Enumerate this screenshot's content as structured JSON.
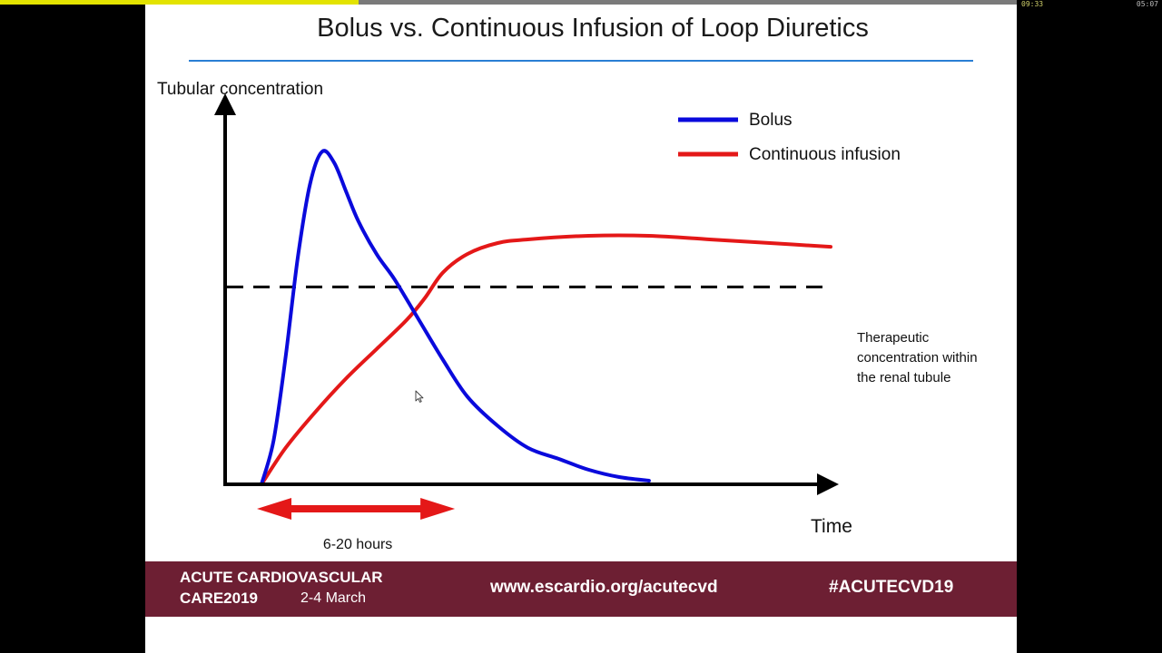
{
  "player": {
    "time_elapsed": "09:33",
    "time_total": "05:07",
    "progress_fraction": 0.353,
    "accent": "#e3e300"
  },
  "slide": {
    "title": "Bolus vs. Continuous Infusion of Loop Diuretics",
    "footer": {
      "event_line1": "ACUTE CARDIOVASCULAR",
      "event_line2": "CARE2019",
      "dates": "2-4 March",
      "url": "www.escardio.org/acutecvd",
      "hashtag": "#ACUTECVD19",
      "band_color": "#6d1f33"
    }
  },
  "chart_data": {
    "type": "line",
    "title": "",
    "ylabel": "Tubular concentration",
    "xlabel": "Time",
    "axis_ticks": false,
    "xlim": [
      0,
      100
    ],
    "ylim": [
      0,
      100
    ],
    "legend_position": "top-right",
    "series": [
      {
        "name": "Bolus",
        "color": "#0a0adc",
        "x": [
          6,
          8,
          10,
          12,
          14,
          16,
          18,
          20,
          22,
          25,
          28,
          32,
          36,
          40,
          45,
          50,
          55,
          60,
          65,
          70
        ],
        "y": [
          0,
          12,
          35,
          62,
          82,
          91,
          88,
          80,
          72,
          63,
          56,
          45,
          34,
          24,
          16,
          10,
          7,
          4,
          2,
          1
        ]
      },
      {
        "name": "Continuous infusion",
        "color": "#e41818",
        "x": [
          6,
          10,
          15,
          20,
          25,
          30,
          33,
          36,
          40,
          45,
          50,
          60,
          70,
          80,
          90,
          100
        ],
        "y": [
          0,
          10,
          20,
          29,
          37,
          45,
          51,
          58,
          63,
          66,
          67,
          68,
          68,
          67,
          66,
          65
        ]
      }
    ],
    "threshold": {
      "y": 54,
      "style": "dashed",
      "color": "#000000",
      "label": "Therapeutic concentration within the renal tubule"
    },
    "range_annotation": {
      "x_from": 6,
      "x_to": 36,
      "label": "6-20 hours",
      "color": "#e41818"
    }
  }
}
